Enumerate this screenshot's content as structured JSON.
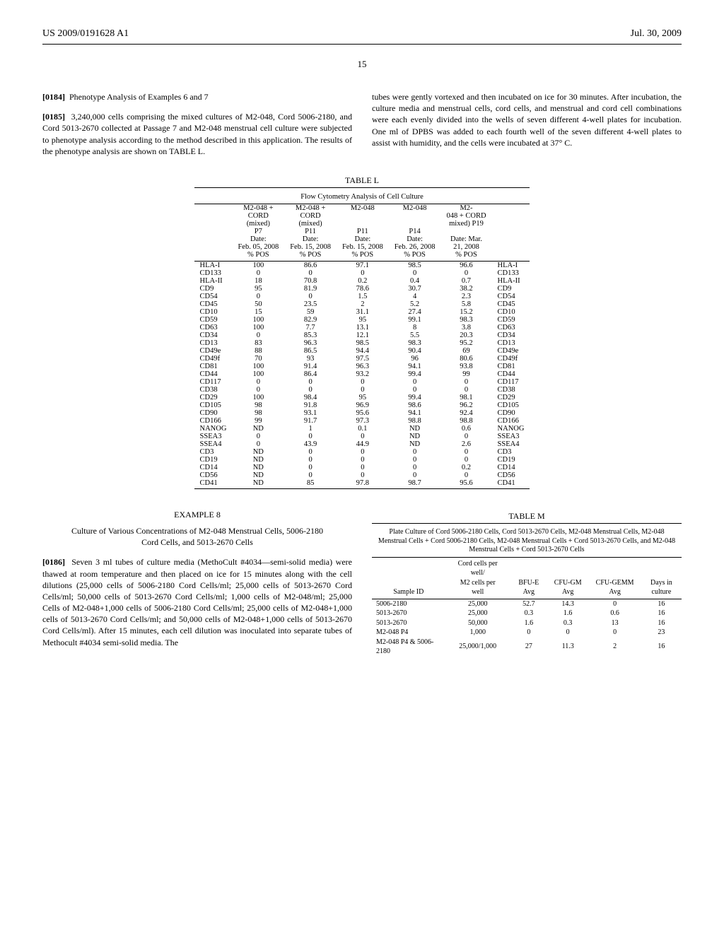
{
  "header": {
    "pub_no": "US 2009/0191628 A1",
    "date": "Jul. 30, 2009",
    "page": "15"
  },
  "left_col": {
    "p1_lead": "[0184]",
    "p1": "Phenotype Analysis of Examples 6 and 7",
    "p2_lead": "[0185]",
    "p2": "3,240,000 cells comprising the mixed cultures of M2-048, Cord 5006-2180, and Cord 5013-2670 collected at Passage 7 and M2-048 menstrual cell culture were subjected to phenotype analysis according to the method described in this application. The results of the phenotype analysis are shown on TABLE L."
  },
  "right_col_top": {
    "p": "tubes were gently vortexed and then incubated on ice for 30 minutes. After incubation, the culture media and menstrual cells, cord cells, and menstrual and cord cell combinations were each evenly divided into the wells of seven different 4-well plates for incubation. One ml of DPBS was added to each fourth well of the seven different 4-well plates to assist with humidity, and the cells were incubated at 37° C."
  },
  "table_l": {
    "caption": "TABLE L",
    "subtitle": "Flow Cytometry Analysis of Cell Culture",
    "columns": [
      [
        "M2-048 +",
        "CORD",
        "(mixed)",
        "P7",
        "Date:",
        "Feb. 05, 2008",
        "% POS"
      ],
      [
        "M2-048 +",
        "CORD",
        "(mixed)",
        "P11",
        "Date:",
        "Feb. 15, 2008",
        "% POS"
      ],
      [
        "M2-048",
        "",
        "",
        "P11",
        "Date:",
        "Feb. 15, 2008",
        "% POS"
      ],
      [
        "M2-048",
        "",
        "",
        "P14",
        "Date:",
        "Feb. 26, 2008",
        "% POS"
      ],
      [
        "M2-",
        "048 + CORD",
        "mixed) P19",
        "",
        "Date: Mar.",
        "21, 2008",
        "% POS"
      ]
    ],
    "rows": [
      [
        "HLA-I",
        "100",
        "86.6",
        "97.1",
        "98.5",
        "96.6",
        "HLA-I"
      ],
      [
        "CD133",
        "0",
        "0",
        "0",
        "0",
        "0",
        "CD133"
      ],
      [
        "HLA-II",
        "18",
        "70.8",
        "0.2",
        "0.4",
        "0.7",
        "HLA-II"
      ],
      [
        "CD9",
        "95",
        "81.9",
        "78.6",
        "30.7",
        "38.2",
        "CD9"
      ],
      [
        "CD54",
        "0",
        "0",
        "1.5",
        "4",
        "2.3",
        "CD54"
      ],
      [
        "CD45",
        "50",
        "23.5",
        "2",
        "5.2",
        "5.8",
        "CD45"
      ],
      [
        "CD10",
        "15",
        "59",
        "31.1",
        "27.4",
        "15.2",
        "CD10"
      ],
      [
        "CD59",
        "100",
        "82.9",
        "95",
        "99.1",
        "98.3",
        "CD59"
      ],
      [
        "CD63",
        "100",
        "7.7",
        "13.1",
        "8",
        "3.8",
        "CD63"
      ],
      [
        "CD34",
        "0",
        "85.3",
        "12.1",
        "5.5",
        "20.3",
        "CD34"
      ],
      [
        "CD13",
        "83",
        "96.3",
        "98.5",
        "98.3",
        "95.2",
        "CD13"
      ],
      [
        "CD49e",
        "88",
        "86.5",
        "94.4",
        "90.4",
        "69",
        "CD49e"
      ],
      [
        "CD49f",
        "70",
        "93",
        "97.5",
        "96",
        "80.6",
        "CD49f"
      ],
      [
        "CD81",
        "100",
        "91.4",
        "96.3",
        "94.1",
        "93.8",
        "CD81"
      ],
      [
        "CD44",
        "100",
        "86.4",
        "93.2",
        "99.4",
        "99",
        "CD44"
      ],
      [
        "CD117",
        "0",
        "0",
        "0",
        "0",
        "0",
        "CD117"
      ],
      [
        "CD38",
        "0",
        "0",
        "0",
        "0",
        "0",
        "CD38"
      ],
      [
        "CD29",
        "100",
        "98.4",
        "95",
        "99.4",
        "98.1",
        "CD29"
      ],
      [
        "CD105",
        "98",
        "91.8",
        "96.9",
        "98.6",
        "96.2",
        "CD105"
      ],
      [
        "CD90",
        "98",
        "93.1",
        "95.6",
        "94.1",
        "92.4",
        "CD90"
      ],
      [
        "CD166",
        "99",
        "91.7",
        "97.3",
        "98.8",
        "98.8",
        "CD166"
      ],
      [
        "NANOG",
        "ND",
        "1",
        "0.1",
        "ND",
        "0.6",
        "NANOG"
      ],
      [
        "SSEA3",
        "0",
        "0",
        "0",
        "ND",
        "0",
        "SSEA3"
      ],
      [
        "SSEA4",
        "0",
        "43.9",
        "44.9",
        "ND",
        "2.6",
        "SSEA4"
      ],
      [
        "CD3",
        "ND",
        "0",
        "0",
        "0",
        "0",
        "CD3"
      ],
      [
        "CD19",
        "ND",
        "0",
        "0",
        "0",
        "0",
        "CD19"
      ],
      [
        "CD14",
        "ND",
        "0",
        "0",
        "0",
        "0.2",
        "CD14"
      ],
      [
        "CD56",
        "ND",
        "0",
        "0",
        "0",
        "0",
        "CD56"
      ],
      [
        "CD41",
        "ND",
        "85",
        "97.8",
        "98.7",
        "95.6",
        "CD41"
      ]
    ]
  },
  "example8": {
    "heading": "EXAMPLE 8",
    "subtitle": "Culture of Various Concentrations of M2-048 Menstrual Cells, 5006-2180 Cord Cells, and 5013-2670 Cells",
    "p_lead": "[0186]",
    "p": "Seven 3 ml tubes of culture media (MethoCult #4034—semi-solid media) were thawed at room temperature and then placed on ice for 15 minutes along with the cell dilutions (25,000 cells of 5006-2180 Cord Cells/ml; 25,000 cells of 5013-2670 Cord Cells/ml; 50,000 cells of 5013-2670 Cord Cells/ml; 1,000 cells of M2-048/ml; 25,000 Cells of M2-048+1,000 cells of 5006-2180 Cord Cells/ml; 25,000 cells of M2-048+1,000 cells of 5013-2670 Cord Cells/ml; and 50,000 cells of M2-048+1,000 cells of 5013-2670 Cord Cells/ml). After 15 minutes, each cell dilution was inoculated into separate tubes of Methocult #4034 semi-solid media. The"
  },
  "table_m": {
    "caption": "TABLE M",
    "subtitle": "Plate Culture of Cord 5006-2180 Cells, Cord 5013-2670 Cells, M2-048 Menstrual Cells, M2-048 Menstrual Cells + Cord 5006-2180 Cells, M2-048 Menstrual Cells + Cord 5013-2670 Cells, and M2-048 Menstrual Cells + Cord 5013-2670 Cells",
    "columns": [
      "Sample ID",
      "Cord cells per well/M2 cells per well",
      "BFU-E Avg",
      "CFU-GM Avg",
      "CFU-GEMM Avg",
      "Days in culture"
    ],
    "rows": [
      [
        "5006-2180",
        "25,000",
        "52.7",
        "14.3",
        "0",
        "16"
      ],
      [
        "5013-2670",
        "25,000",
        "0.3",
        "1.6",
        "0.6",
        "16"
      ],
      [
        "5013-2670",
        "50,000",
        "1.6",
        "0.3",
        "13",
        "16"
      ],
      [
        "M2-048 P4",
        "1,000",
        "0",
        "0",
        "0",
        "23"
      ],
      [
        "M2-048 P4 & 5006-2180",
        "25,000/1,000",
        "27",
        "11.3",
        "2",
        "16"
      ]
    ]
  }
}
